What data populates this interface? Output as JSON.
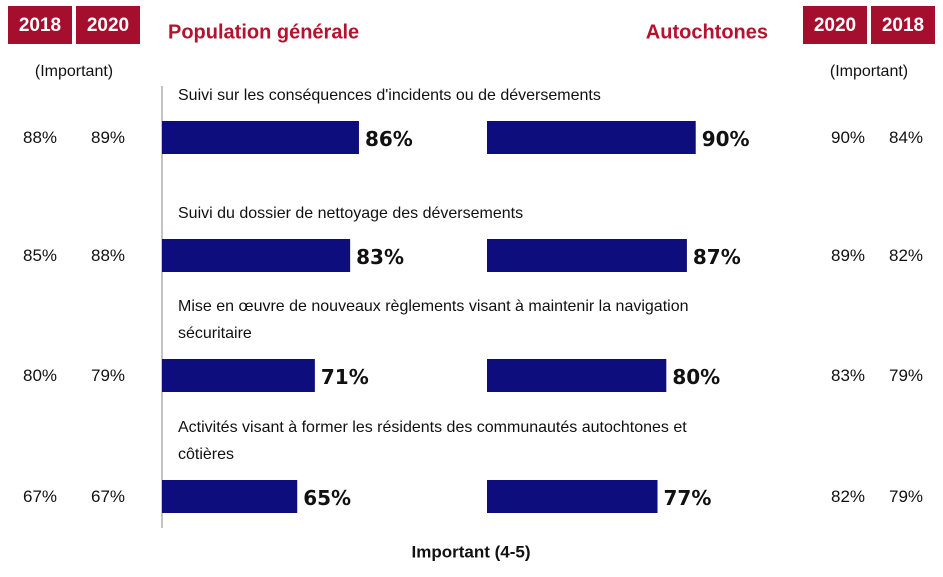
{
  "chart_data": {
    "type": "bar",
    "orientation": "horizontal",
    "xlabel": "Important (4-5)",
    "xlim": [
      0,
      100
    ],
    "categories": [
      "Suivi sur les conséquences d'incidents ou de déversements",
      "Suivi du dossier de nettoyage des déversements",
      "Mise en œuvre de nouveaux règlements visant à maintenir la navigation sécuritaire",
      "Activités visant à former les résidents des communautés autochtones et côtières"
    ],
    "series": [
      {
        "name": "Population générale",
        "color": "#0d0d7d",
        "values": [
          86,
          83,
          71,
          65
        ],
        "value_labels": [
          "86%",
          "83%",
          "71%",
          "65%"
        ]
      },
      {
        "name": "Autochtones",
        "color": "#0d0d7d",
        "values": [
          90,
          87,
          80,
          77
        ],
        "value_labels": [
          "90%",
          "87%",
          "80%",
          "77%"
        ]
      }
    ],
    "title_color": "#b5122f",
    "header_color": "#a50f2d",
    "side_tables": [
      {
        "subtitle": "(Important)",
        "columns": [
          "2018",
          "2020"
        ],
        "rows": [
          [
            "88%",
            "89%"
          ],
          [
            "85%",
            "88%"
          ],
          [
            "80%",
            "79%"
          ],
          [
            "67%",
            "67%"
          ]
        ]
      },
      {
        "subtitle": "(Important)",
        "columns": [
          "2020",
          "2018"
        ],
        "rows": [
          [
            "90%",
            "84%"
          ],
          [
            "89%",
            "82%"
          ],
          [
            "83%",
            "79%"
          ],
          [
            "82%",
            "79%"
          ]
        ]
      }
    ]
  }
}
